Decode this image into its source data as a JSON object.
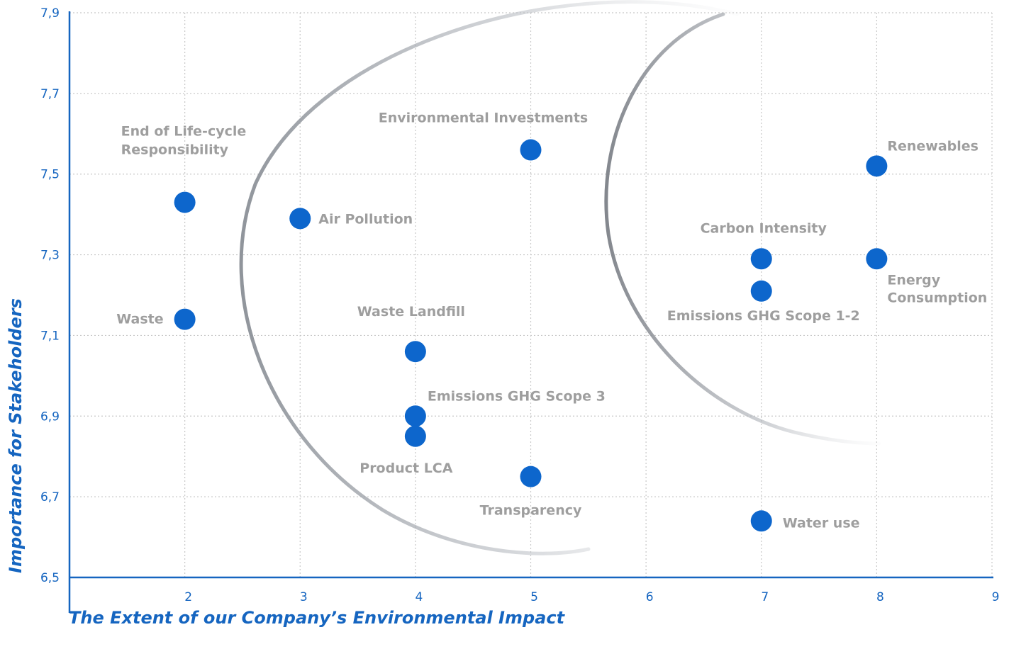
{
  "chart_data": {
    "type": "scatter",
    "xlabel": "The Extent of our Company’s Environmental Impact",
    "ylabel": "Importance for Stakeholders",
    "xlim": [
      1,
      9
    ],
    "ylim": [
      6.5,
      7.9
    ],
    "x_ticks": [
      "2",
      "3",
      "4",
      "5",
      "6",
      "7",
      "8",
      "9"
    ],
    "y_ticks": [
      "6,5",
      "6,7",
      "6,9",
      "7,1",
      "7,3",
      "7,5",
      "7,7",
      "7,9"
    ],
    "grid": true,
    "points": [
      {
        "label": "End of Life-cycle Responsibility",
        "label_lines": [
          "End of Life-cycle",
          "Responsibility"
        ],
        "x": 2,
        "y": 7.43
      },
      {
        "label": "Waste",
        "label_lines": [
          "Waste"
        ],
        "x": 2,
        "y": 7.14
      },
      {
        "label": "Air Pollution",
        "label_lines": [
          "Air Pollution"
        ],
        "x": 3,
        "y": 7.39
      },
      {
        "label": "Environmental Investments",
        "label_lines": [
          "Environmental Investments"
        ],
        "x": 5,
        "y": 7.56
      },
      {
        "label": "Waste Landfill",
        "label_lines": [
          "Waste Landfill"
        ],
        "x": 4,
        "y": 7.06
      },
      {
        "label": "Emissions GHG Scope 3",
        "label_lines": [
          "Emissions GHG Scope 3"
        ],
        "x": 4,
        "y": 6.9
      },
      {
        "label": "Product LCA",
        "label_lines": [
          "Product LCA"
        ],
        "x": 4,
        "y": 6.85
      },
      {
        "label": "Transparency",
        "label_lines": [
          "Transparency"
        ],
        "x": 5,
        "y": 6.75
      },
      {
        "label": "Carbon Intensity",
        "label_lines": [
          "Carbon Intensity"
        ],
        "x": 7,
        "y": 7.29
      },
      {
        "label": "Emissions GHG Scope 1-2",
        "label_lines": [
          "Emissions GHG Scope 1-2"
        ],
        "x": 7,
        "y": 7.21
      },
      {
        "label": "Water use",
        "label_lines": [
          "Water use"
        ],
        "x": 7,
        "y": 6.64
      },
      {
        "label": "Renewables",
        "label_lines": [
          "Renewables"
        ],
        "x": 8,
        "y": 7.52
      },
      {
        "label": "Energy Consumption",
        "label_lines": [
          "Energy",
          "Consumption"
        ],
        "x": 8,
        "y": 7.29
      }
    ],
    "colors": {
      "point": "#0d66cc",
      "axis": "#1565c0",
      "label": "#9e9e9e",
      "grid": "#c8c8c8",
      "arc": "#8a8f96"
    }
  }
}
